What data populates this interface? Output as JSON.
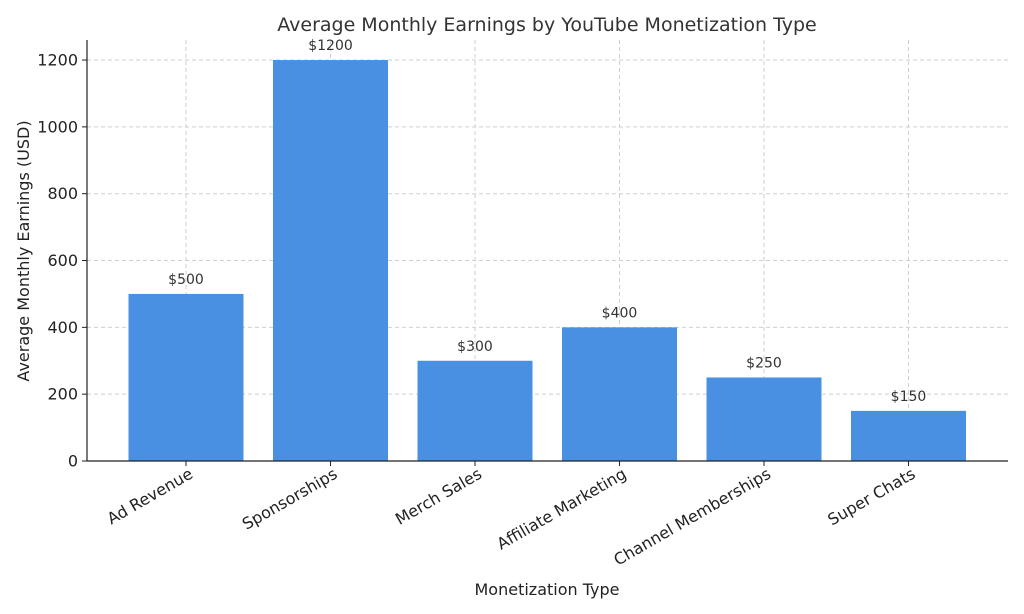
{
  "chart_data": {
    "type": "bar",
    "title": "Average Monthly Earnings by YouTube Monetization Type",
    "xlabel": "Monetization Type",
    "ylabel": "Average Monthly Earnings (USD)",
    "categories": [
      "Ad Revenue",
      "Sponsorships",
      "Merch Sales",
      "Affiliate Marketing",
      "Channel Memberships",
      "Super Chats"
    ],
    "values": [
      500,
      1200,
      300,
      400,
      250,
      150
    ],
    "data_labels": [
      "$500",
      "$1200",
      "$300",
      "$400",
      "$250",
      "$150"
    ],
    "yticks": [
      0,
      200,
      400,
      600,
      800,
      1000,
      1200
    ],
    "ylim": [
      0,
      1260
    ],
    "grid": true,
    "bar_color": "#4a90e2"
  }
}
